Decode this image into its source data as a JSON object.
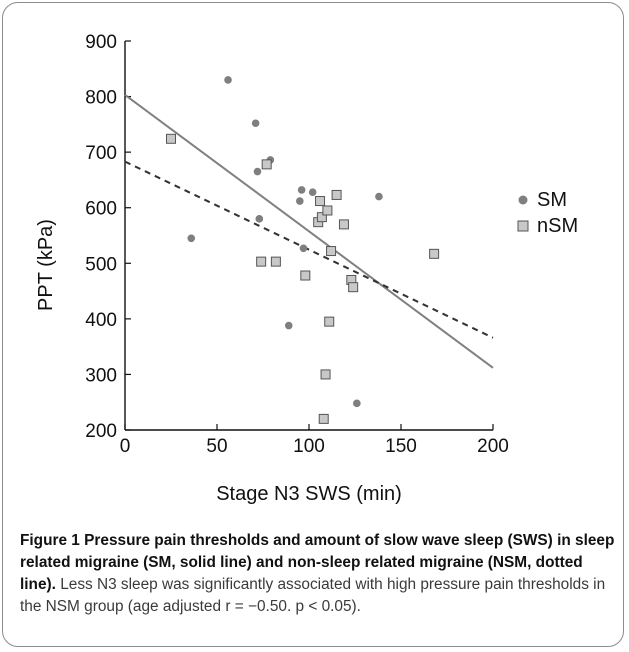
{
  "chart_data": {
    "type": "scatter",
    "xlabel": "Stage N3 SWS (min)",
    "ylabel": "PPT (kPa)",
    "xlim": [
      0,
      200
    ],
    "ylim": [
      200,
      900
    ],
    "xticks": [
      "0",
      "50",
      "100",
      "150",
      "200"
    ],
    "yticks": [
      "200",
      "300",
      "400",
      "500",
      "600",
      "700",
      "800",
      "900"
    ],
    "grid": false,
    "legend_position": "right",
    "series": [
      {
        "name": "SM",
        "marker": "circle",
        "color": "#7f7f7f",
        "points": [
          [
            36,
            545
          ],
          [
            56,
            830
          ],
          [
            71,
            752
          ],
          [
            72,
            665
          ],
          [
            73,
            580
          ],
          [
            79,
            686
          ],
          [
            89,
            388
          ],
          [
            95,
            612
          ],
          [
            96,
            632
          ],
          [
            97,
            527
          ],
          [
            102,
            628
          ],
          [
            126,
            248
          ],
          [
            138,
            620
          ]
        ],
        "fit_line": {
          "style": "solid",
          "x": [
            0,
            200
          ],
          "y": [
            803,
            312
          ]
        }
      },
      {
        "name": "nSM",
        "marker": "square",
        "color": "#c8c8c8",
        "points": [
          [
            25,
            724
          ],
          [
            74,
            503
          ],
          [
            77,
            678
          ],
          [
            82,
            503
          ],
          [
            98,
            478
          ],
          [
            105,
            574
          ],
          [
            106,
            612
          ],
          [
            107,
            583
          ],
          [
            108,
            220
          ],
          [
            109,
            300
          ],
          [
            110,
            595
          ],
          [
            111,
            395
          ],
          [
            112,
            522
          ],
          [
            115,
            623
          ],
          [
            119,
            570
          ],
          [
            123,
            470
          ],
          [
            124,
            457
          ],
          [
            168,
            517
          ]
        ],
        "fit_line": {
          "style": "dashed",
          "x": [
            0,
            200
          ],
          "y": [
            683,
            366
          ]
        }
      }
    ]
  },
  "caption": {
    "bold": "Figure 1 Pressure pain thresholds and amount of slow wave sleep (SWS) in sleep related migraine (SM, solid line) and non-sleep related migraine (NSM, dotted line).",
    "text": " Less N3 sleep was significantly associated with high pressure pain thresholds in the NSM group (age adjusted r = −0.50. p < 0.05)."
  }
}
